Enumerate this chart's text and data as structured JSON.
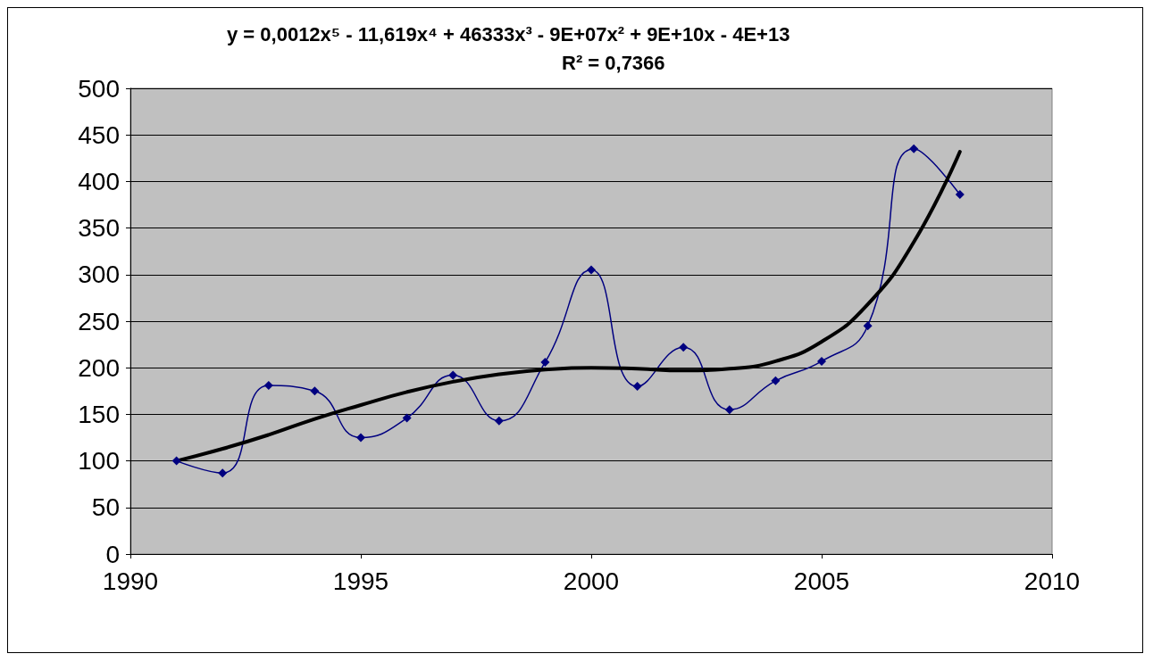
{
  "chart_data": {
    "type": "line",
    "annotations": [
      "y = 0,0012x⁵ - 11,619x⁴ + 46333x³ - 9E+07x² + 9E+10x - 4E+13",
      "R² = 0,7366"
    ],
    "x": [
      1991,
      1992,
      1993,
      1994,
      1995,
      1996,
      1997,
      1998,
      1999,
      2000,
      2001,
      2002,
      2003,
      2004,
      2005,
      2006,
      2007,
      2008
    ],
    "series": [
      {
        "color": "#000080",
        "marker": "diamond",
        "values": [
          100,
          87,
          181,
          175,
          125,
          146,
          192,
          143,
          206,
          305,
          180,
          222,
          155,
          186,
          207,
          245,
          435,
          386
        ]
      },
      {
        "color": "#000000",
        "marker": "none",
        "values": [
          100,
          113,
          128,
          145,
          160,
          174,
          185,
          193,
          198,
          200,
          199,
          197,
          199,
          207,
          228,
          268,
          335,
          432
        ]
      }
    ],
    "xlim": [
      1990,
      2010
    ],
    "xticks": [
      1990,
      1995,
      2000,
      2005,
      2010
    ],
    "ylim": [
      0,
      500
    ],
    "yticks": [
      0,
      50,
      100,
      150,
      200,
      250,
      300,
      350,
      400,
      450,
      500
    ],
    "grid": "y"
  }
}
